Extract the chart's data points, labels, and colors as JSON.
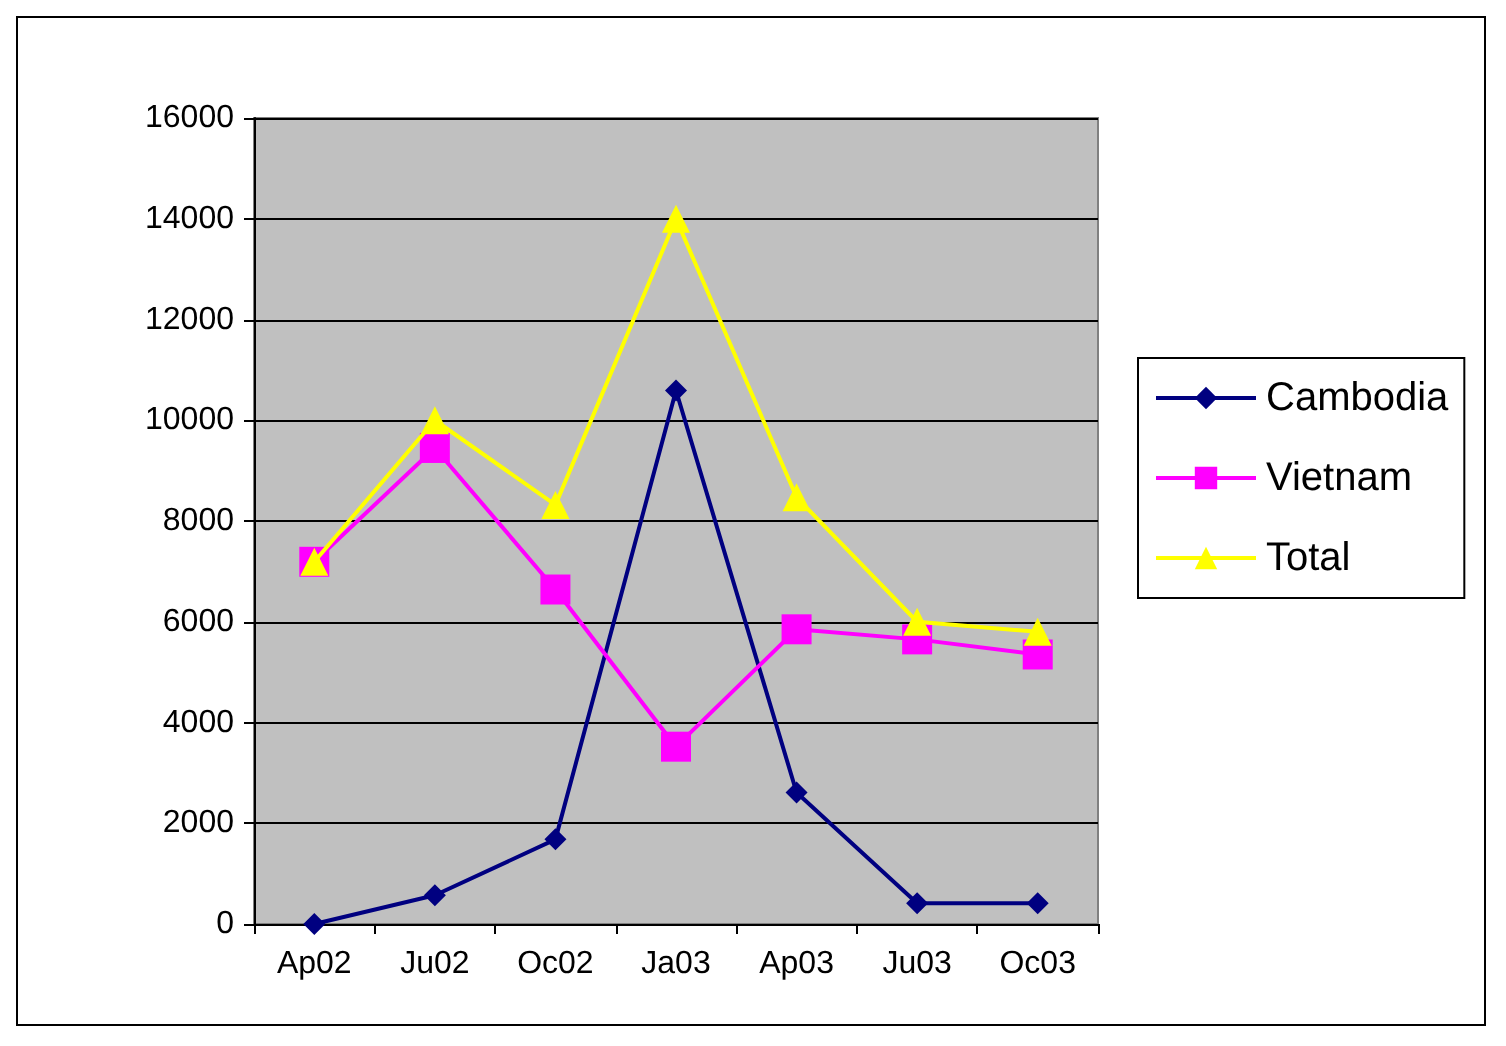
{
  "chart_data": {
    "type": "line",
    "categories": [
      "Ap02",
      "Ju02",
      "Oc02",
      "Ja03",
      "Ap03",
      "Ju03",
      "Oc03"
    ],
    "series": [
      {
        "name": "Cambodia",
        "color": "#000080",
        "marker": "diamond",
        "values": [
          0,
          570,
          1680,
          10590,
          2610,
          410,
          410
        ]
      },
      {
        "name": "Vietnam",
        "color": "#ff00ff",
        "marker": "square",
        "values": [
          7190,
          9450,
          6640,
          3520,
          5850,
          5650,
          5350
        ]
      },
      {
        "name": "Total",
        "color": "#ffff00",
        "marker": "triangle",
        "values": [
          7190,
          10000,
          8320,
          14000,
          8470,
          6000,
          5800
        ]
      }
    ],
    "ylim": [
      0,
      16000
    ],
    "yticks": [
      0,
      2000,
      4000,
      6000,
      8000,
      10000,
      12000,
      14000,
      16000
    ],
    "grid": "y",
    "legend": "right",
    "line_style": "solid"
  }
}
